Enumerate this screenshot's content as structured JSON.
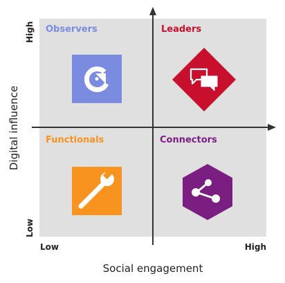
{
  "diagram": {
    "x_axis": {
      "title": "Social engagement",
      "low": "Low",
      "high": "High"
    },
    "y_axis": {
      "title": "Digital influence",
      "low": "Low",
      "high": "High"
    },
    "quadrants": [
      {
        "label": "Observers",
        "color": "#7b8ce0",
        "icon": "refresh-arc-icon"
      },
      {
        "label": "Leaders",
        "color": "#c8102e",
        "icon": "chat-bubbles-icon"
      },
      {
        "label": "Functionals",
        "color": "#f7931e",
        "icon": "wrench-icon"
      },
      {
        "label": "Connectors",
        "color": "#7a1e82",
        "icon": "share-network-icon"
      }
    ],
    "colors": {
      "panel": "#e0e0e0",
      "axis": "#333333"
    }
  }
}
